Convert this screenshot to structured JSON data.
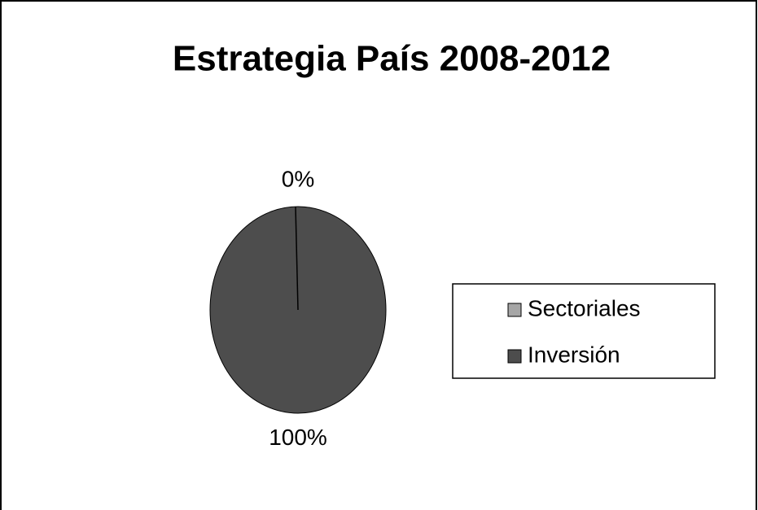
{
  "chart_data": {
    "type": "pie",
    "title": "Estrategia País 2008-2012",
    "categories": [
      "Sectoriales",
      "Inversión"
    ],
    "values": [
      0,
      100
    ],
    "value_labels": [
      "0%",
      "100%"
    ],
    "colors": [
      "#a6a6a6",
      "#4d4d4d"
    ],
    "legend": "right"
  }
}
